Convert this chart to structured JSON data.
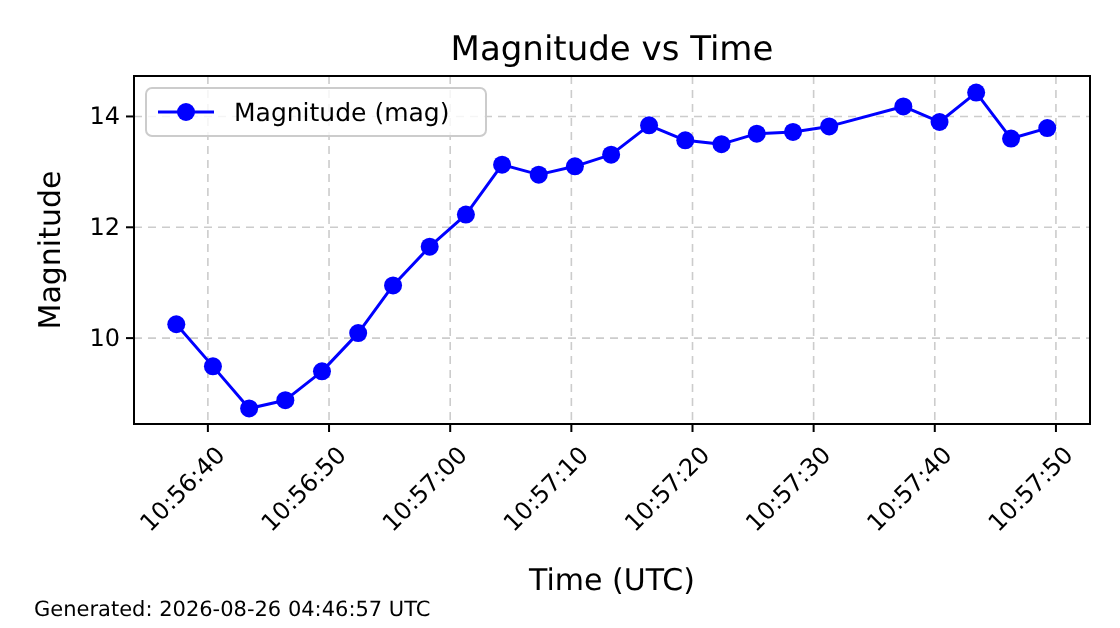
{
  "chart_data": {
    "type": "line",
    "title": "Magnitude vs Time",
    "xlabel": "Time (UTC)",
    "ylabel": "Magnitude",
    "annotations": [
      "Generated: 2026-08-26 04:46:57 UTC"
    ],
    "x": [
      10.94372,
      10.94456,
      10.94539,
      10.94622,
      10.94706,
      10.94789,
      10.94869,
      10.94953,
      10.95036,
      10.95119,
      10.95203,
      10.95286,
      10.95369,
      10.95456,
      10.95539,
      10.95622,
      10.95703,
      10.95786,
      10.95869,
      10.96039,
      10.96122,
      10.96206,
      10.96286,
      10.96369
    ],
    "series": [
      {
        "name": "Magnitude (mag)",
        "color": "#0000ff",
        "values": [
          10.25,
          9.49,
          8.73,
          8.88,
          9.4,
          10.09,
          10.95,
          11.65,
          12.23,
          13.13,
          12.95,
          13.1,
          13.31,
          13.84,
          13.57,
          13.5,
          13.69,
          13.72,
          13.82,
          14.18,
          13.9,
          14.43,
          13.6,
          13.79
        ]
      }
    ],
    "xlim": [
      10.94275,
      10.96467
    ],
    "xticks": [
      {
        "value": 10.944444,
        "label": "10:56:40"
      },
      {
        "value": 10.947222,
        "label": "10:56:50"
      },
      {
        "value": 10.95,
        "label": "10:57:00"
      },
      {
        "value": 10.952778,
        "label": "10:57:10"
      },
      {
        "value": 10.955556,
        "label": "10:57:20"
      },
      {
        "value": 10.958333,
        "label": "10:57:30"
      },
      {
        "value": 10.961111,
        "label": "10:57:40"
      },
      {
        "value": 10.963889,
        "label": "10:57:50"
      }
    ],
    "ylim": [
      8.45,
      14.73
    ],
    "yticks": [
      10,
      12,
      14
    ],
    "grid": true,
    "legend": "top left",
    "marker": "circle",
    "line_style": "solid"
  }
}
